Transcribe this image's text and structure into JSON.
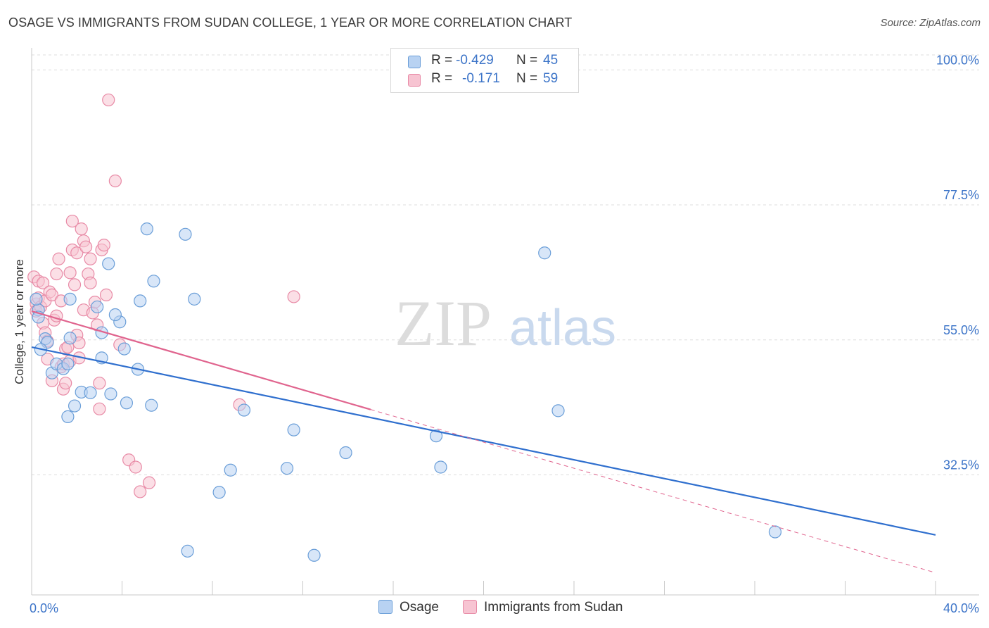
{
  "header": {
    "title": "OSAGE VS IMMIGRANTS FROM SUDAN COLLEGE, 1 YEAR OR MORE CORRELATION CHART",
    "source": "Source: ZipAtlas.com"
  },
  "legend": {
    "rows": [
      {
        "r_label": "R =",
        "r_value": "-0.429",
        "n_label": "N =",
        "n_value": "45"
      },
      {
        "r_label": "R =",
        "r_value": "-0.171",
        "n_label": "N =",
        "n_value": "59"
      }
    ]
  },
  "bottom_legend": {
    "items": [
      {
        "label": "Osage"
      },
      {
        "label": "Immigrants from Sudan"
      }
    ]
  },
  "watermark": {
    "zip": "ZIP",
    "atlas": "atlas"
  },
  "colors": {
    "blue_fill": "#b8d2f2",
    "blue_stroke": "#6a9ed8",
    "blue_line": "#2f6fce",
    "pink_fill": "#f7c4d2",
    "pink_stroke": "#e88aa6",
    "pink_line": "#e0648e",
    "tick_label": "#3c74c8",
    "grid": "#dedede"
  },
  "chart_data": {
    "type": "scatter",
    "title": "OSAGE VS IMMIGRANTS FROM SUDAN COLLEGE, 1 YEAR OR MORE CORRELATION CHART",
    "xlabel": "",
    "ylabel": "College, 1 year or more",
    "xlim": [
      0,
      40
    ],
    "ylim": [
      12.5,
      102.5
    ],
    "x_tick_labels": [
      "0.0%",
      "40.0%"
    ],
    "y_ticks": [
      32.5,
      55.0,
      77.5,
      100.0
    ],
    "y_tick_labels": [
      "32.5%",
      "55.0%",
      "77.5%",
      "100.0%"
    ],
    "grid": true,
    "series": [
      {
        "name": "Osage",
        "r": -0.429,
        "n": 45,
        "points": [
          [
            0.3,
            60.0
          ],
          [
            0.3,
            58.8
          ],
          [
            0.6,
            55.2
          ],
          [
            0.7,
            54.6
          ],
          [
            0.4,
            53.4
          ],
          [
            0.9,
            49.5
          ],
          [
            1.1,
            51.0
          ],
          [
            1.4,
            50.2
          ],
          [
            1.6,
            51.0
          ],
          [
            1.6,
            42.2
          ],
          [
            1.7,
            55.3
          ],
          [
            1.9,
            44.0
          ],
          [
            2.2,
            46.3
          ],
          [
            2.6,
            46.2
          ],
          [
            2.9,
            60.5
          ],
          [
            3.1,
            56.2
          ],
          [
            3.1,
            52.0
          ],
          [
            3.4,
            67.7
          ],
          [
            3.5,
            46.0
          ],
          [
            3.9,
            58.0
          ],
          [
            4.1,
            53.5
          ],
          [
            4.2,
            44.5
          ],
          [
            4.7,
            50.1
          ],
          [
            4.8,
            61.5
          ],
          [
            5.1,
            73.5
          ],
          [
            5.3,
            44.1
          ],
          [
            5.4,
            64.8
          ],
          [
            6.8,
            72.6
          ],
          [
            6.9,
            19.8
          ],
          [
            7.2,
            61.8
          ],
          [
            8.3,
            29.6
          ],
          [
            8.8,
            33.3
          ],
          [
            9.4,
            43.3
          ],
          [
            11.3,
            33.6
          ],
          [
            11.6,
            40.0
          ],
          [
            12.5,
            19.1
          ],
          [
            13.9,
            36.2
          ],
          [
            17.9,
            39.0
          ],
          [
            18.1,
            33.8
          ],
          [
            22.7,
            69.5
          ],
          [
            23.3,
            43.2
          ],
          [
            32.9,
            23.0
          ],
          [
            0.2,
            61.8
          ],
          [
            1.7,
            61.8
          ],
          [
            3.7,
            59.2
          ]
        ]
      },
      {
        "name": "Immigrants from Sudan",
        "r": -0.171,
        "n": 59,
        "points": [
          [
            0.1,
            65.5
          ],
          [
            0.2,
            61.0
          ],
          [
            0.2,
            59.8
          ],
          [
            0.3,
            62.0
          ],
          [
            0.3,
            64.8
          ],
          [
            0.4,
            60.5
          ],
          [
            0.5,
            64.5
          ],
          [
            0.5,
            57.8
          ],
          [
            0.6,
            61.5
          ],
          [
            0.6,
            56.2
          ],
          [
            0.7,
            51.8
          ],
          [
            0.7,
            54.8
          ],
          [
            0.8,
            63.0
          ],
          [
            0.9,
            48.2
          ],
          [
            0.9,
            62.5
          ],
          [
            1.0,
            58.3
          ],
          [
            1.1,
            59.0
          ],
          [
            1.1,
            66.0
          ],
          [
            1.2,
            68.5
          ],
          [
            1.3,
            50.5
          ],
          [
            1.3,
            61.5
          ],
          [
            1.4,
            46.8
          ],
          [
            1.4,
            51.0
          ],
          [
            1.5,
            53.5
          ],
          [
            1.5,
            47.8
          ],
          [
            1.6,
            53.8
          ],
          [
            1.7,
            51.5
          ],
          [
            1.7,
            66.2
          ],
          [
            1.8,
            70.0
          ],
          [
            1.8,
            74.8
          ],
          [
            1.9,
            64.2
          ],
          [
            2.0,
            55.8
          ],
          [
            2.0,
            69.5
          ],
          [
            2.1,
            54.5
          ],
          [
            2.1,
            52.0
          ],
          [
            2.2,
            73.5
          ],
          [
            2.3,
            71.5
          ],
          [
            2.3,
            60.0
          ],
          [
            2.4,
            70.5
          ],
          [
            2.5,
            66.0
          ],
          [
            2.6,
            68.5
          ],
          [
            2.6,
            64.5
          ],
          [
            2.7,
            59.5
          ],
          [
            2.8,
            61.3
          ],
          [
            2.9,
            57.5
          ],
          [
            3.0,
            47.8
          ],
          [
            3.0,
            43.5
          ],
          [
            3.1,
            70.0
          ],
          [
            3.2,
            70.8
          ],
          [
            3.3,
            62.5
          ],
          [
            3.4,
            95.0
          ],
          [
            3.7,
            81.5
          ],
          [
            3.9,
            54.2
          ],
          [
            4.3,
            35.0
          ],
          [
            4.6,
            33.8
          ],
          [
            4.8,
            29.7
          ],
          [
            5.2,
            31.2
          ],
          [
            9.2,
            44.2
          ],
          [
            11.6,
            62.2
          ]
        ]
      }
    ],
    "trend_lines": [
      {
        "series": "Osage",
        "x": [
          0.0,
          40.0
        ],
        "y": [
          53.8,
          22.5
        ],
        "style": "solid"
      },
      {
        "series": "Immigrants from Sudan",
        "x": [
          0.0,
          15.0
        ],
        "y": [
          59.8,
          43.4
        ],
        "style": "solid"
      },
      {
        "series": "Immigrants from Sudan",
        "x": [
          15.0,
          40.0
        ],
        "y": [
          43.4,
          16.2
        ],
        "style": "dashed"
      }
    ]
  }
}
